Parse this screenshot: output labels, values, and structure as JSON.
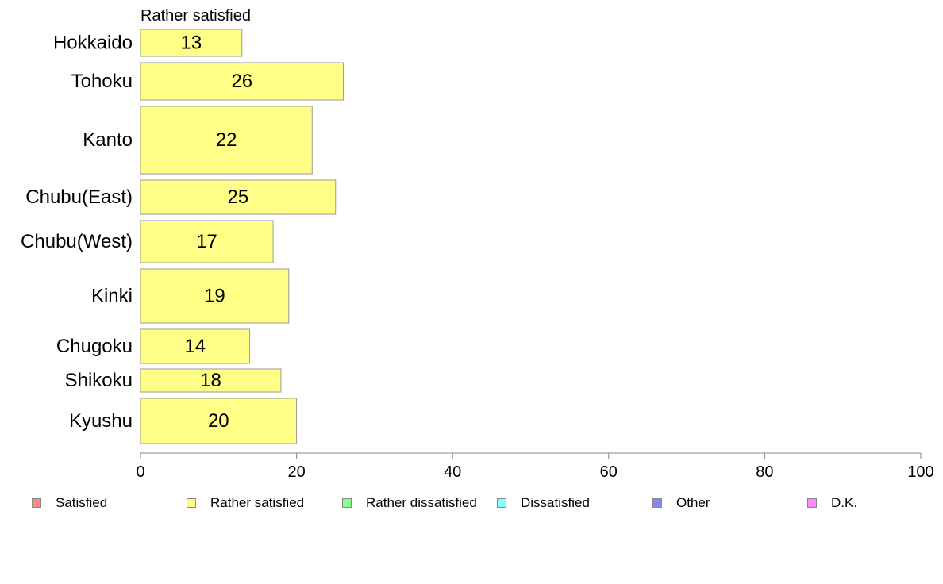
{
  "chart_data": {
    "type": "bar",
    "orientation": "horizontal",
    "title": "Rather satisfied",
    "categories": [
      "Hokkaido",
      "Tohoku",
      "Kanto",
      "Chubu(East)",
      "Chubu(West)",
      "Kinki",
      "Chugoku",
      "Shikoku",
      "Kyushu"
    ],
    "values": [
      13,
      26,
      22,
      25,
      17,
      19,
      14,
      18,
      20
    ],
    "xlim": [
      0,
      100
    ],
    "xticks": [
      0,
      20,
      40,
      60,
      80,
      100
    ],
    "grid": false,
    "bar_color": "#ffff88",
    "legend_position": "bottom",
    "legend": [
      {
        "label": "Satisfied",
        "color": "#ff8888"
      },
      {
        "label": "Rather satisfied",
        "color": "#ffff88"
      },
      {
        "label": "Rather dissatisfied",
        "color": "#88ff88"
      },
      {
        "label": "Dissatisfied",
        "color": "#88ffff"
      },
      {
        "label": "Other",
        "color": "#8888ee"
      },
      {
        "label": "D.K.",
        "color": "#ff88ff"
      }
    ]
  }
}
